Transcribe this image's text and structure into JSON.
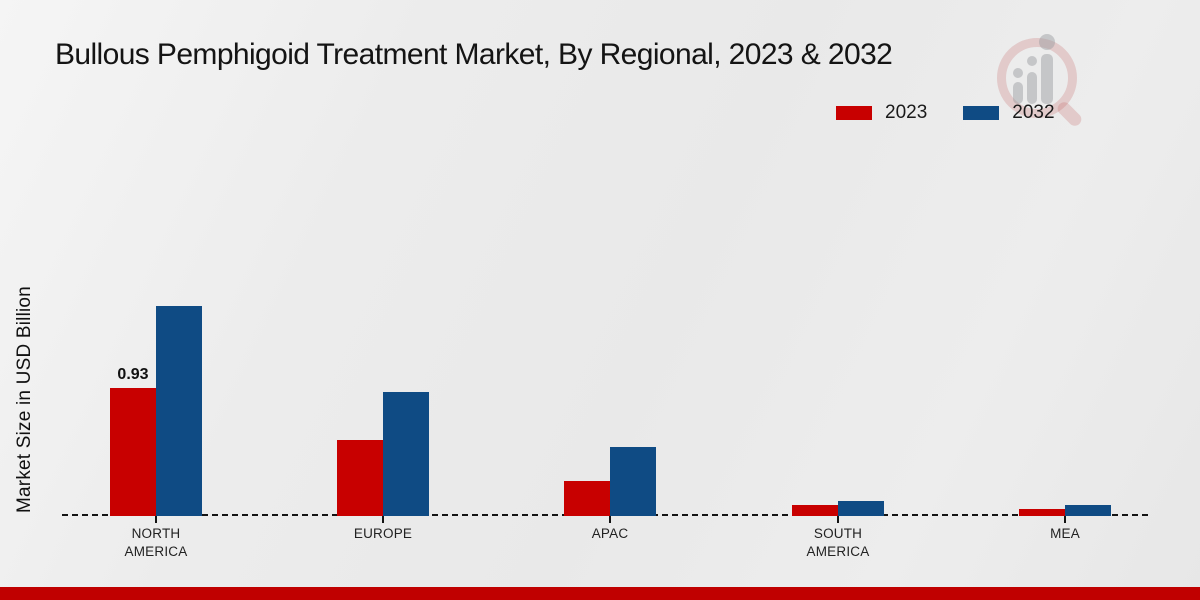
{
  "colors": {
    "accent_red": "#c80000",
    "accent_blue": "#0f4b84",
    "footer_band": "#c00000",
    "axis": "#141414",
    "background": "#ebebeb"
  },
  "chart_data": {
    "type": "bar",
    "title": "Bullous Pemphigoid Treatment Market, By Regional, 2023 & 2032",
    "ylabel": "Market Size in USD Billion",
    "xlabel": "",
    "categories": [
      "NORTH AMERICA",
      "EUROPE",
      "APAC",
      "SOUTH AMERICA",
      "MEA"
    ],
    "series": [
      {
        "name": "2023",
        "color": "#c80000",
        "values": [
          0.93,
          0.55,
          0.25,
          0.08,
          0.05
        ]
      },
      {
        "name": "2032",
        "color": "#0f4b84",
        "values": [
          1.52,
          0.9,
          0.5,
          0.11,
          0.08
        ]
      }
    ],
    "annotations": [
      {
        "series": "2023",
        "category": "NORTH AMERICA",
        "label": "0.93"
      }
    ],
    "ylim": [
      0,
      1.6
    ],
    "grid": false,
    "baseline_style": "dashed",
    "legend_position": "top-right",
    "units": "USD Billion"
  }
}
